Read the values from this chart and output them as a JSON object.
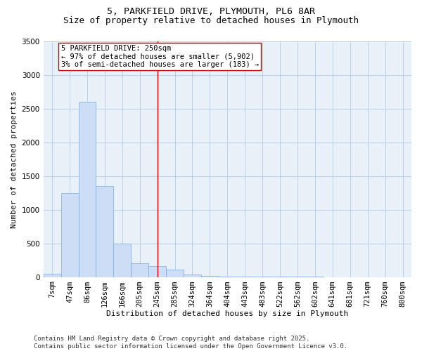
{
  "title": "5, PARKFIELD DRIVE, PLYMOUTH, PL6 8AR",
  "subtitle": "Size of property relative to detached houses in Plymouth",
  "xlabel": "Distribution of detached houses by size in Plymouth",
  "ylabel": "Number of detached properties",
  "categories": [
    "7sqm",
    "47sqm",
    "86sqm",
    "126sqm",
    "166sqm",
    "205sqm",
    "245sqm",
    "285sqm",
    "324sqm",
    "364sqm",
    "404sqm",
    "443sqm",
    "483sqm",
    "522sqm",
    "562sqm",
    "602sqm",
    "641sqm",
    "681sqm",
    "721sqm",
    "760sqm",
    "800sqm"
  ],
  "bar_heights": [
    50,
    1250,
    2600,
    1350,
    500,
    200,
    160,
    110,
    40,
    15,
    5,
    3,
    2,
    1,
    1,
    1,
    0,
    0,
    0,
    0,
    0
  ],
  "bar_color": "#ccddf5",
  "bar_edge_color": "#7aaadd",
  "grid_color": "#b8cfe8",
  "background_color": "#e8f0f8",
  "ylim": [
    0,
    3500
  ],
  "yticks": [
    0,
    500,
    1000,
    1500,
    2000,
    2500,
    3000,
    3500
  ],
  "vline_x_index": 6,
  "vline_color": "#cc0000",
  "annotation_text": "5 PARKFIELD DRIVE: 250sqm\n← 97% of detached houses are smaller (5,902)\n3% of semi-detached houses are larger (183) →",
  "annotation_box_color": "#ffffff",
  "annotation_edge_color": "#cc0000",
  "footer_text": "Contains HM Land Registry data © Crown copyright and database right 2025.\nContains public sector information licensed under the Open Government Licence v3.0.",
  "title_fontsize": 9.5,
  "subtitle_fontsize": 9,
  "axis_label_fontsize": 8,
  "tick_fontsize": 7.5,
  "annotation_fontsize": 7.5,
  "footer_fontsize": 6.5
}
